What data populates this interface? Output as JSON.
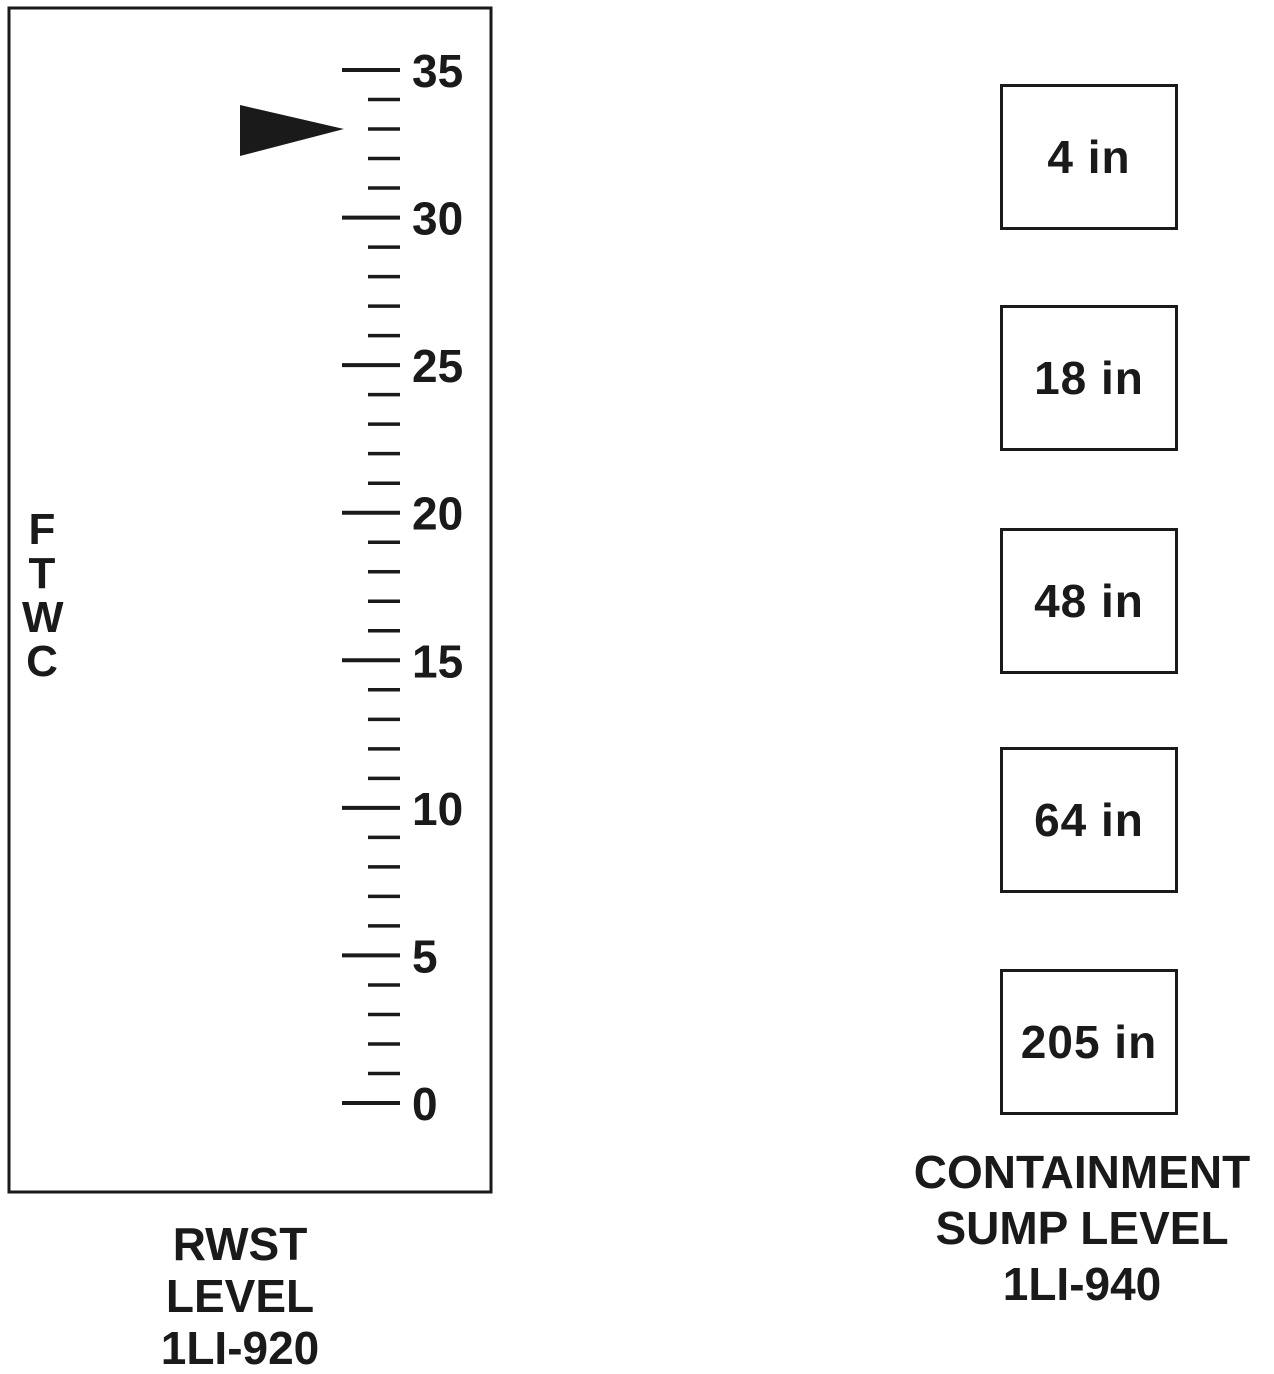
{
  "rwst_gauge": {
    "scale_min": 0,
    "scale_max": 35,
    "major_step": 5,
    "minor_step": 1,
    "tick_labels": [
      "0",
      "5",
      "10",
      "15",
      "20",
      "25",
      "30",
      "35"
    ],
    "pointer_value": 33,
    "side_label_letters": [
      "F",
      "T",
      "W",
      "C"
    ],
    "label_lines": [
      "RWST",
      "LEVEL",
      "1LI-920"
    ]
  },
  "containment_sump": {
    "readings": [
      "4 in",
      "18 in",
      "48 in",
      "64 in",
      "205 in"
    ],
    "label_lines": [
      "CONTAINMENT",
      "SUMP LEVEL",
      "1LI-940"
    ]
  },
  "colors": {
    "ink": "#1a1a1a",
    "background": "#ffffff"
  }
}
